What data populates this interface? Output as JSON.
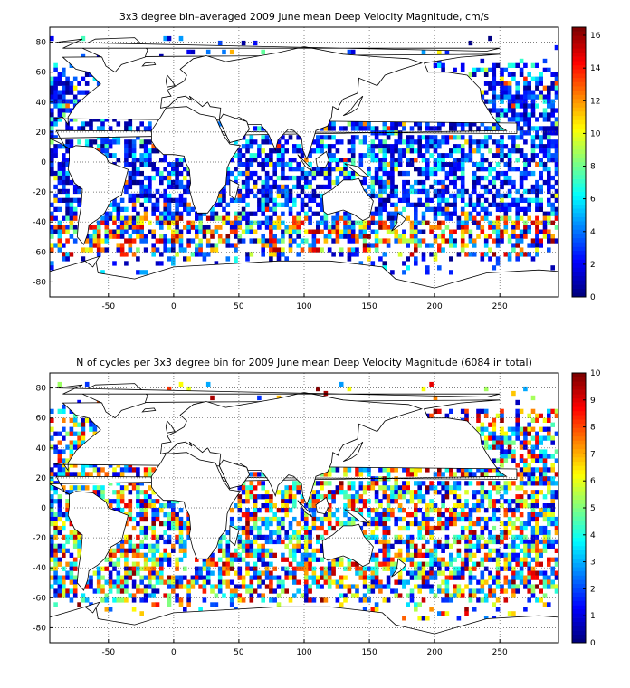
{
  "chart_data": [
    {
      "type": "heatmap",
      "title": "3x3 degree bin–averaged 2009 June mean Deep Velocity Magnitude, cm/s",
      "xlim": [
        -95,
        295
      ],
      "ylim": [
        -90,
        90
      ],
      "bin_size_deg": 3,
      "xticks": [
        -50,
        0,
        50,
        100,
        150,
        200,
        250
      ],
      "yticks": [
        80,
        60,
        40,
        20,
        0,
        -20,
        -40,
        -60,
        -80
      ],
      "grid": true,
      "colormap": "jet",
      "colorbar": {
        "min": 0,
        "max": 16.5,
        "ticks": [
          0,
          2,
          4,
          6,
          8,
          10,
          12,
          14,
          16
        ]
      },
      "cells_note": "ocean bins colored by magnitude; dense blue (0-4) in interior Pacific/Atlantic, high values (10-16) in Southern Ocean band near -40 to -60"
    },
    {
      "type": "heatmap",
      "title": "N of cycles per 3x3 degree bin for 2009 June mean Deep Velocity Magnitude (6084 in total)",
      "xlim": [
        -95,
        295
      ],
      "ylim": [
        -90,
        90
      ],
      "bin_size_deg": 3,
      "xticks": [
        -50,
        0,
        50,
        100,
        150,
        200,
        250
      ],
      "yticks": [
        80,
        60,
        40,
        20,
        0,
        -20,
        -40,
        -60,
        -80
      ],
      "grid": true,
      "colormap": "jet",
      "colorbar": {
        "min": 0,
        "max": 10,
        "ticks": [
          0,
          1,
          2,
          3,
          4,
          5,
          6,
          7,
          8,
          9,
          10
        ]
      },
      "total_cycles": 6084
    }
  ],
  "colors": {
    "frame": "#000000",
    "grid": "#555555",
    "land": "#ffffff"
  }
}
